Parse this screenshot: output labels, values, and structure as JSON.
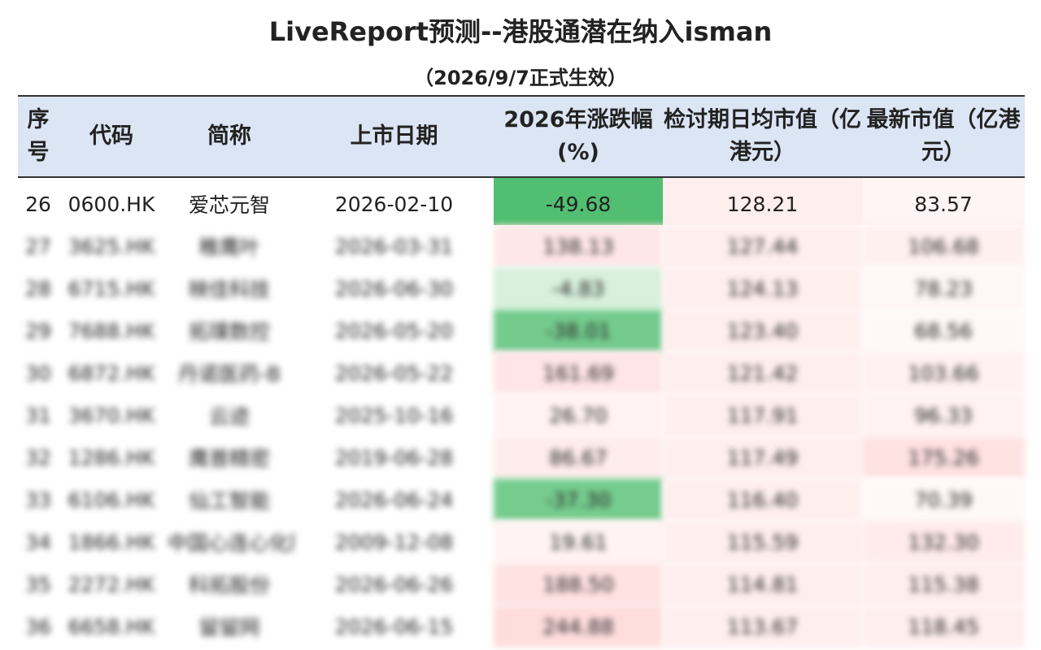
{
  "header": {
    "title": "LiveReport预测--港股通潜在纳入isman",
    "subtitle": "（2026/9/7正式生效）"
  },
  "table": {
    "columns": [
      "序号",
      "代码",
      "简称",
      "上市日期",
      "2026年涨跌幅(%)",
      "检讨期日均市值（亿港元）",
      "最新市值（亿港元）"
    ],
    "rows": [
      [
        "26",
        "0600.HK",
        "爱芯元智",
        "2026-02-10",
        "-49.68",
        "128.21",
        "83.57"
      ],
      [
        "27",
        "3625.HK",
        "稚鹰叶",
        "2026-03-31",
        "138.13",
        "127.44",
        "106.68"
      ],
      [
        "28",
        "6715.HK",
        "映佳科技",
        "2026-06-30",
        "-4.83",
        "124.13",
        "78.23"
      ],
      [
        "29",
        "7688.HK",
        "拓璞数控",
        "2026-05-20",
        "-38.01",
        "123.40",
        "68.56"
      ],
      [
        "30",
        "6872.HK",
        "丹诺医药-B",
        "2026-05-22",
        "161.69",
        "121.42",
        "103.66"
      ],
      [
        "31",
        "3670.HK",
        "云迹",
        "2025-10-16",
        "26.70",
        "117.91",
        "96.33"
      ],
      [
        "32",
        "1286.HK",
        "鹰普精密",
        "2019-06-28",
        "86.67",
        "117.49",
        "175.26"
      ],
      [
        "33",
        "6106.HK",
        "仙工智能",
        "2026-06-24",
        "-37.30",
        "116.40",
        "70.39"
      ],
      [
        "34",
        "1866.HK",
        "中国心连心化肥",
        "2009-12-08",
        "19.61",
        "115.59",
        "132.30"
      ],
      [
        "35",
        "2272.HK",
        "科拓股份",
        "2026-06-26",
        "188.50",
        "114.81",
        "115.38"
      ],
      [
        "36",
        "6658.HK",
        "留留网",
        "2026-06-15",
        "244.88",
        "113.67",
        "118.45"
      ]
    ]
  }
}
